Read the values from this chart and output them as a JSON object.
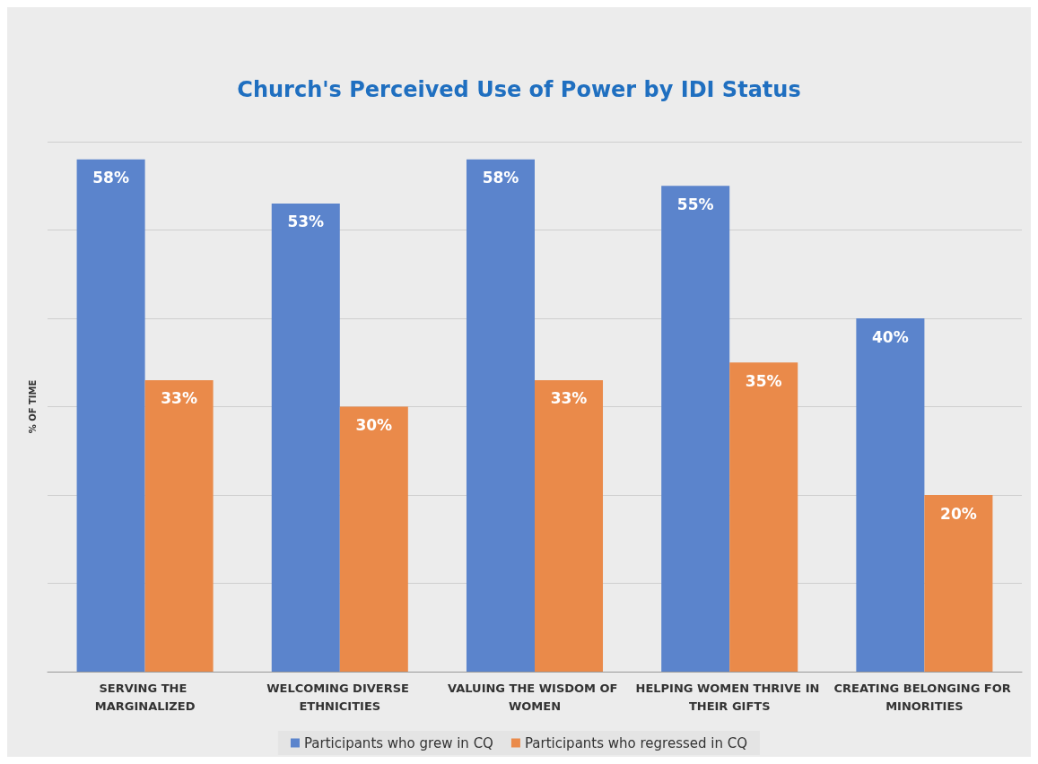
{
  "chart_data": {
    "type": "bar",
    "title": "Church's Perceived Use of Power by IDI Status",
    "ylabel": "% OF TIME",
    "categories": [
      "SERVING THE MARGINALIZED",
      "WELCOMING DIVERSE ETHNICITIES",
      "VALUING THE WISDOM OF WOMEN",
      "HELPING WOMEN THRIVE IN THEIR GIFTS",
      "CREATING BELONGING FOR MINORITIES"
    ],
    "series": [
      {
        "name": "Participants who grew in CQ",
        "color": "#5b84cc",
        "values": [
          58,
          53,
          58,
          55,
          40
        ],
        "value_labels": [
          "58%",
          "53%",
          "58%",
          "55%",
          "40%"
        ]
      },
      {
        "name": "Participants who regressed in CQ",
        "color": "#ea8a4a",
        "values": [
          33,
          30,
          33,
          35,
          20
        ],
        "value_labels": [
          "33%",
          "30%",
          "33%",
          "35%",
          "20%"
        ]
      }
    ],
    "ylim": [
      0,
      60
    ],
    "yticks": [
      {
        "value": 0,
        "label": null
      },
      {
        "value": 10,
        "label": null
      },
      {
        "value": 20,
        "label": null
      },
      {
        "value": 30,
        "label": null
      },
      {
        "value": 40,
        "label": null
      },
      {
        "value": 50,
        "label": null
      },
      {
        "value": 60,
        "label": null
      }
    ],
    "tick_labels": "x",
    "grid": "y",
    "legend": "bottom"
  }
}
